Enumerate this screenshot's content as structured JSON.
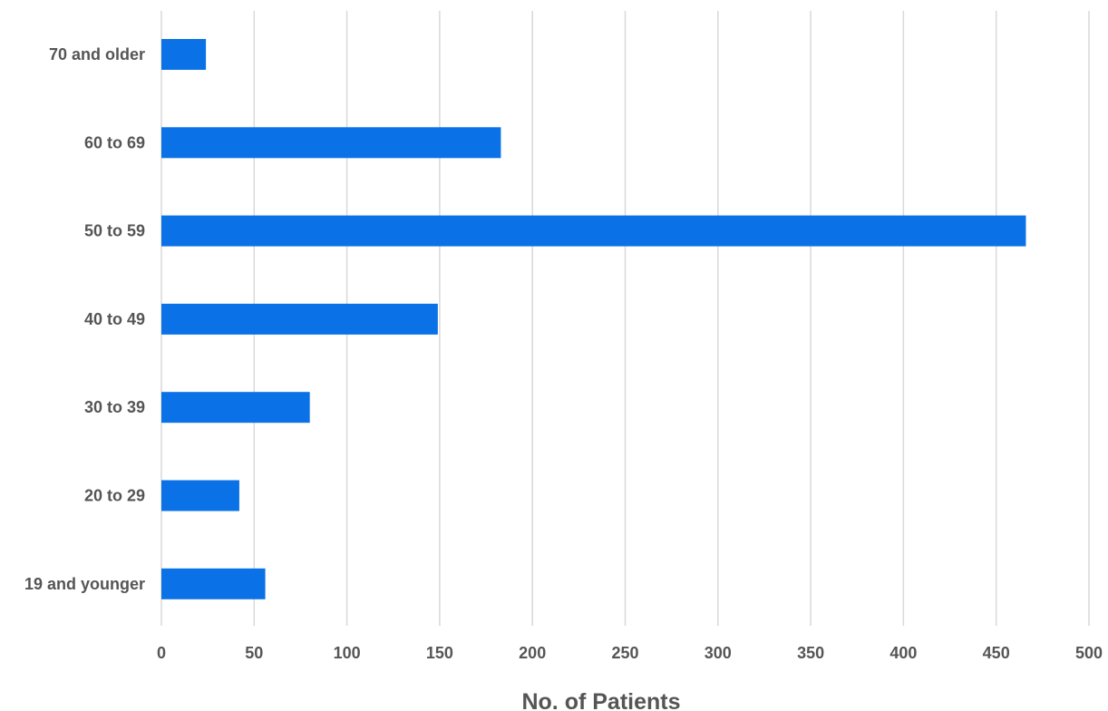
{
  "chart_data": {
    "type": "bar",
    "orientation": "horizontal",
    "title": "",
    "xlabel": "No. of Patients",
    "ylabel": "",
    "categories": [
      "70 and older",
      "60 to 69",
      "50 to 59",
      "40 to 49",
      "30 to 39",
      "20 to 29",
      "19 and younger"
    ],
    "values": [
      24,
      183,
      466,
      149,
      80,
      42,
      56
    ],
    "xlim": [
      0,
      500
    ],
    "xticks": [
      "0",
      "50",
      "100",
      "150",
      "200",
      "250",
      "300",
      "350",
      "400",
      "450",
      "500"
    ],
    "grid": "vertical",
    "legend": "none",
    "bar_color": "#0a72e6"
  }
}
